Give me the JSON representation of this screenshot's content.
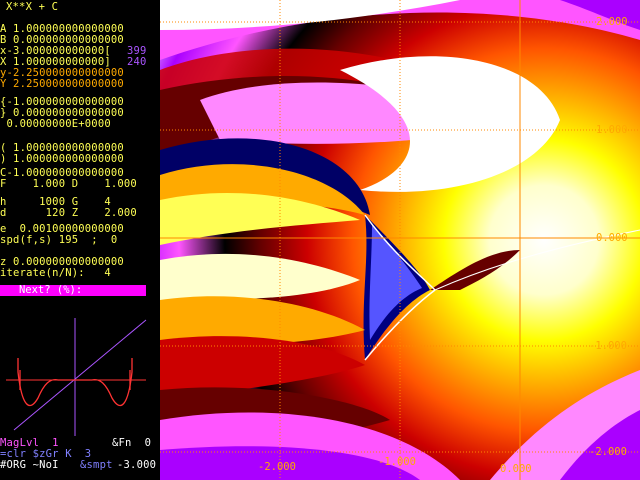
{
  "formula": "X**X + C",
  "params": {
    "a": "A 1.000000000000000",
    "b": "B 0.000000000000000",
    "xmin": "x-3.000000000000[",
    "xres": "399",
    "xmax": "X 1.000000000000]",
    "yres": "240",
    "ymin": "y-2.250000000000000",
    "ymax": "Y 2.250000000000000",
    "c_re": "{-1.000000000000000",
    "c_im": "} 0.000000000000000",
    "epsilon": " 0.00000000E+0000",
    "p_re": "( 1.000000000000000",
    "p_im": ") 1.000000000000000",
    "cval": "C-1.000000000000000",
    "fd": "F    1.000 D    1.000",
    "hg": "h     1000 G    4",
    "dz": "d      120 Z    2.000",
    "e": "e  0.00100000000000",
    "spd": "spd(f,s) 195  ;  0",
    "z": "z 0.000000000000000",
    "iterate": "iterate(n/N):   4",
    "next_prompt": "   Next? (%):",
    "maglvl": "MagLvl  1",
    "fn": "&Fn  0",
    "clr": "=clr $zGr K  3",
    "org": "#ORG ~NoI",
    "smpt": "&smpt",
    "smpt_val": "-3.000"
  },
  "axis_labels": {
    "y_top": "2.000",
    "y_upper": "1.000",
    "y_mid": "0.000",
    "y_lower": "-1.000",
    "y_bottom": "-2.000",
    "x_left": "-2.000",
    "x_mid": "-1.000",
    "x_right": "0.000"
  },
  "colors": {
    "accent_magenta": "#ff00ff",
    "label_yellow": "#ffff55",
    "label_orange": "#ffaa00",
    "grid_orange": "#ff8800",
    "inset_curve": "#ff3333",
    "inset_axis": "#aa55ff"
  }
}
